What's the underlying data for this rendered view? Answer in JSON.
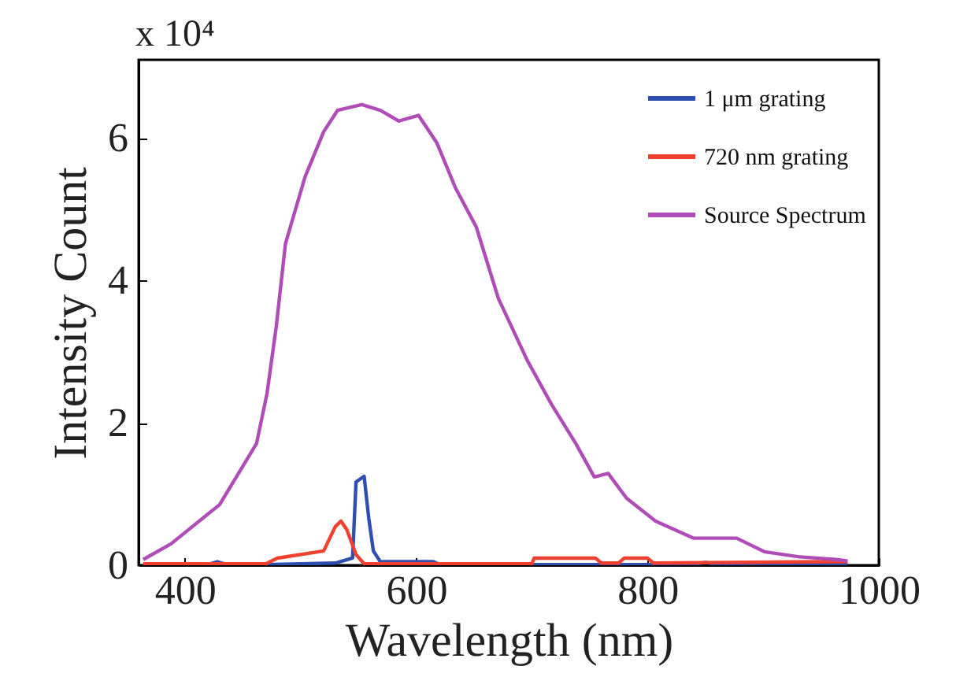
{
  "chart_data": {
    "type": "line",
    "xlabel": "Wavelength (nm)",
    "ylabel": "Intensity Count",
    "annotations": [
      "x 10⁴"
    ],
    "xlim": [
      360,
      1000
    ],
    "xticks": [
      400,
      600,
      800,
      1000
    ],
    "ylim": [
      0,
      7.1
    ],
    "yticks": [
      0,
      2,
      4,
      6
    ],
    "grid": false,
    "legend": "top right",
    "marker": "none",
    "line_style": "solid",
    "series": [
      {
        "name": "1 μm grating",
        "color": "#2e4fb0",
        "x": [
          364,
          400,
          420,
          428,
          436,
          470,
          530,
          545,
          548,
          555,
          559,
          563,
          569,
          615,
          620,
          740,
          840,
          850,
          860,
          973
        ],
        "values": [
          0.01,
          0.01,
          0.01,
          0.05,
          0.01,
          0.01,
          0.03,
          0.1,
          1.17,
          1.25,
          0.66,
          0.2,
          0.05,
          0.05,
          0.01,
          0.01,
          0.01,
          0.04,
          0.01,
          0.01
        ]
      },
      {
        "name": "720 nm grating",
        "color": "#f04030",
        "x": [
          364,
          470,
          480,
          520,
          530,
          535,
          540,
          548,
          555,
          700,
          702,
          755,
          760,
          775,
          780,
          800,
          805,
          960,
          973
        ],
        "values": [
          0.02,
          0.02,
          0.1,
          0.2,
          0.54,
          0.62,
          0.5,
          0.15,
          0.02,
          0.02,
          0.1,
          0.1,
          0.03,
          0.03,
          0.1,
          0.1,
          0.03,
          0.05,
          0.05
        ]
      },
      {
        "name": "Source Spectrum",
        "color": "#b04cb8",
        "x": [
          364,
          388,
          430,
          462,
          471,
          479,
          487,
          504,
          520,
          532,
          553,
          569,
          585,
          602,
          618,
          634,
          652,
          671,
          696,
          717,
          738,
          754,
          766,
          782,
          807,
          840,
          877,
          901,
          930,
          963,
          973
        ],
        "values": [
          0.08,
          0.3,
          0.85,
          1.71,
          2.41,
          3.35,
          4.52,
          5.46,
          6.09,
          6.39,
          6.47,
          6.39,
          6.24,
          6.32,
          5.93,
          5.3,
          4.75,
          3.75,
          2.88,
          2.26,
          1.71,
          1.24,
          1.29,
          0.94,
          0.62,
          0.38,
          0.38,
          0.19,
          0.12,
          0.08,
          0.06
        ]
      }
    ]
  }
}
